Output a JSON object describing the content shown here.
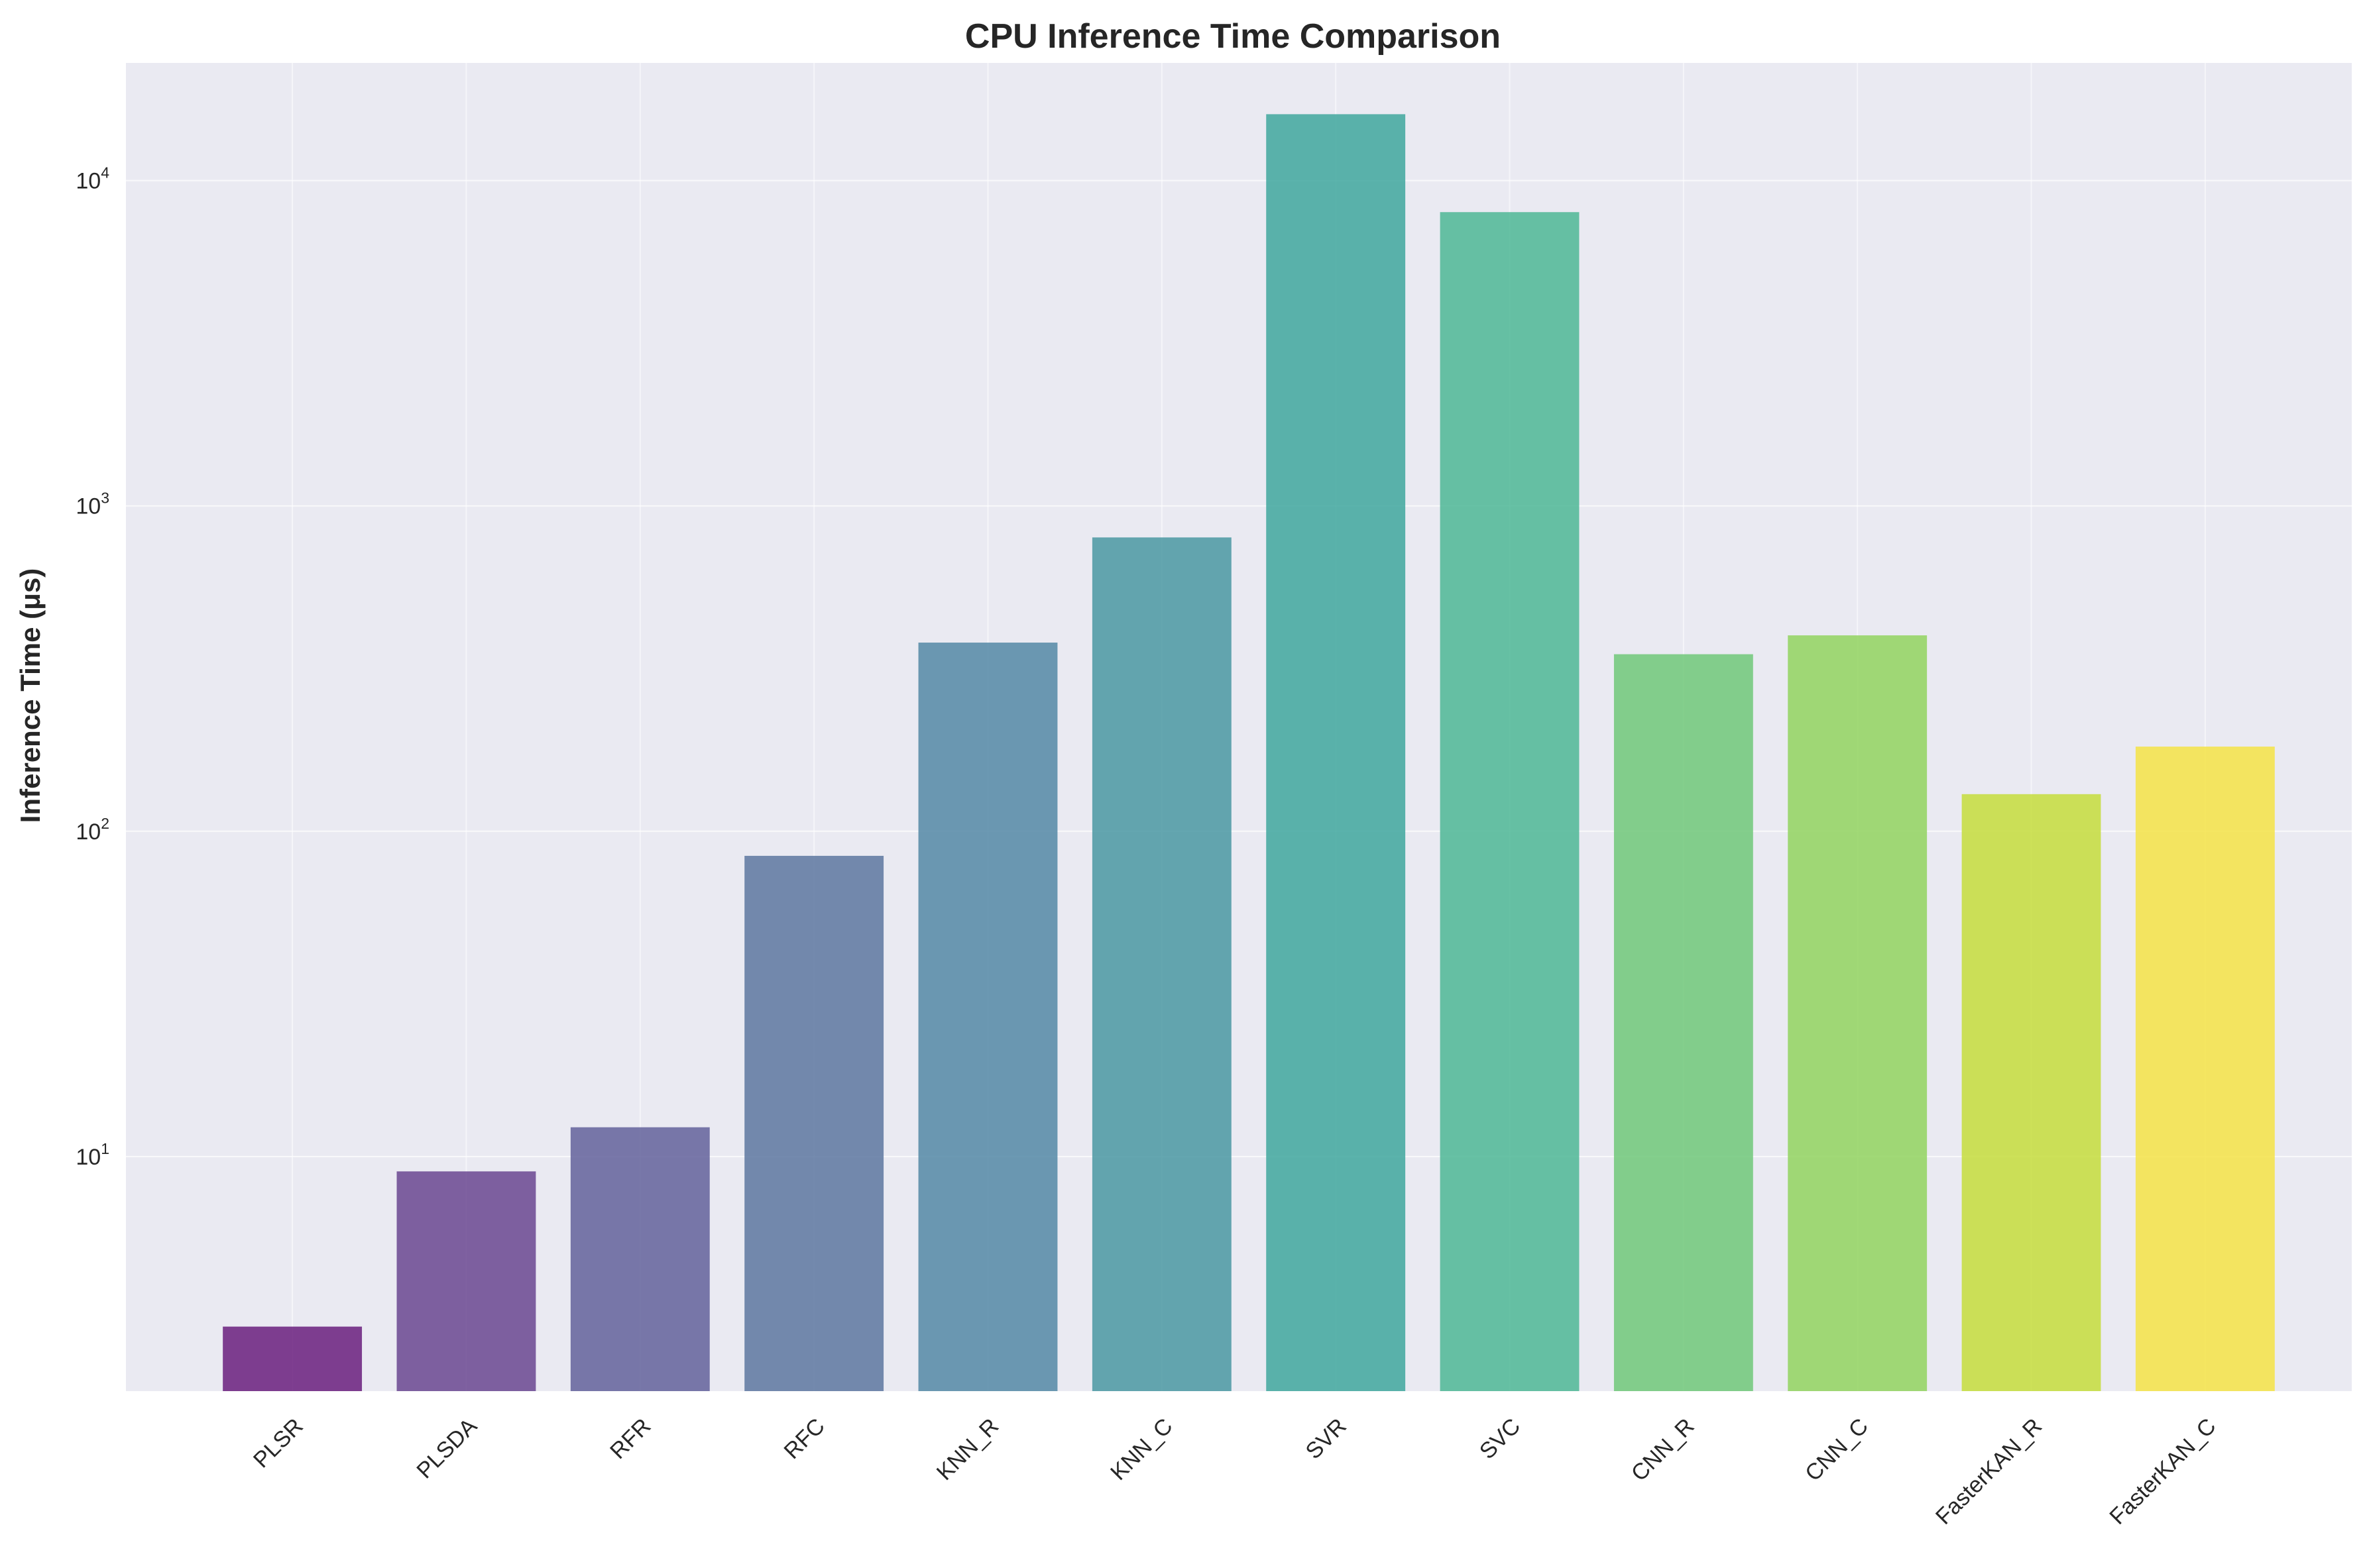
{
  "chart_data": {
    "type": "bar",
    "title": "CPU Inference Time Comparison",
    "xlabel": "",
    "ylabel": "Inference Time (μs)",
    "yscale": "log",
    "ylim": [
      1.9,
      23000
    ],
    "yticks": [
      {
        "value": 10,
        "base": "10",
        "exp": "1"
      },
      {
        "value": 100,
        "base": "10",
        "exp": "2"
      },
      {
        "value": 1000,
        "base": "10",
        "exp": "3"
      },
      {
        "value": 10000,
        "base": "10",
        "exp": "4"
      }
    ],
    "grid": true,
    "categories": [
      "PLSR",
      "PLSDA",
      "RFR",
      "RFC",
      "KNN_R",
      "KNN_C",
      "SVR",
      "SVC",
      "CNN_R",
      "CNN_C",
      "FasterKAN_R",
      "FasterKAN_C"
    ],
    "values": [
      3.0,
      9.0,
      12.3,
      84,
      380,
      800,
      16000,
      8000,
      350,
      400,
      130,
      182
    ],
    "colors": [
      "#6a1e7e",
      "#6a4691",
      "#63619b",
      "#5d77a0",
      "#5488a6",
      "#4a98a2",
      "#3fa79e",
      "#4eb795",
      "#70c879",
      "#92d35f",
      "#c5dd3c",
      "#f5e346"
    ]
  }
}
